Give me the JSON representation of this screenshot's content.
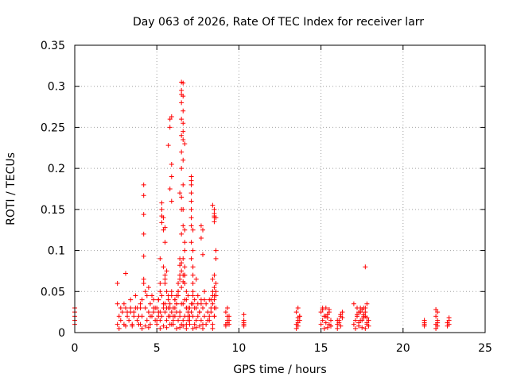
{
  "chart_data": {
    "type": "scatter",
    "title": "Day 063 of 2026, Rate Of TEC Index for receiver larr",
    "xlabel": "GPS time / hours",
    "ylabel": "ROTI / TECUs",
    "xlim": [
      0,
      25
    ],
    "ylim": [
      0,
      0.35
    ],
    "xticks": [
      "0",
      "5",
      "10",
      "15",
      "20",
      "25"
    ],
    "xtick_values": [
      0,
      5,
      10,
      15,
      20,
      25
    ],
    "yticks": [
      "0",
      "0.05",
      "0.1",
      "0.15",
      "0.2",
      "0.25",
      "0.3",
      "0.35"
    ],
    "ytick_values": [
      0,
      0.05,
      0.1,
      0.15,
      0.2,
      0.25,
      0.3,
      0.35
    ],
    "grid": true,
    "marker": "+",
    "color": "#ff0000",
    "series": [
      {
        "x": [
          0.0,
          0.0,
          0.0,
          0.0,
          0.0,
          2.6,
          2.7,
          2.8,
          2.9,
          3.0,
          3.1,
          3.2,
          3.3,
          3.4,
          3.5,
          3.6,
          3.7,
          3.8,
          3.9,
          2.6,
          2.8,
          3.0,
          3.2,
          3.4,
          3.6,
          3.8,
          2.7,
          3.1,
          3.5,
          3.9,
          3.1,
          2.6,
          3.4,
          3.7,
          4.0,
          4.1,
          4.2,
          4.2,
          4.2,
          4.2,
          4.2,
          4.3,
          4.4,
          4.5,
          4.6,
          4.7,
          4.8,
          4.9,
          4.0,
          4.1,
          4.3,
          4.4,
          4.6,
          4.8,
          4.9,
          4.2,
          4.5,
          4.7,
          4.1,
          4.3,
          4.5,
          4.2,
          4.8,
          4.6,
          4.0,
          5.0,
          5.1,
          5.2,
          5.2,
          5.3,
          5.3,
          5.3,
          5.3,
          5.4,
          5.4,
          5.4,
          5.5,
          5.5,
          5.5,
          5.6,
          5.6,
          5.7,
          5.7,
          5.8,
          5.8,
          5.9,
          5.9,
          5.0,
          5.1,
          5.2,
          5.3,
          5.4,
          5.5,
          5.6,
          5.7,
          5.8,
          5.9,
          5.0,
          5.2,
          5.4,
          5.6,
          5.8,
          5.1,
          5.3,
          5.5,
          5.7,
          5.2,
          5.4,
          5.6,
          5.9,
          5.2,
          5.5,
          5.5,
          5.1,
          5.7,
          5.8,
          5.8,
          5.9,
          5.9,
          5.9,
          5.8,
          5.9,
          6.0,
          6.0,
          6.1,
          6.1,
          6.2,
          6.2,
          6.3,
          6.3,
          6.4,
          6.4,
          6.5,
          6.5,
          6.5,
          6.5,
          6.5,
          6.5,
          6.5,
          6.5,
          6.6,
          6.6,
          6.6,
          6.6,
          6.6,
          6.6,
          6.6,
          6.7,
          6.7,
          6.7,
          6.7,
          6.8,
          6.8,
          6.8,
          6.9,
          6.9,
          6.9,
          6.0,
          6.1,
          6.2,
          6.3,
          6.4,
          6.5,
          6.6,
          6.7,
          6.8,
          6.9,
          6.0,
          6.2,
          6.4,
          6.6,
          6.8,
          6.1,
          6.3,
          6.5,
          6.7,
          6.9,
          6.2,
          6.4,
          6.6,
          6.8,
          6.3,
          6.5,
          6.7,
          6.4,
          6.6,
          6.5,
          6.6,
          6.7,
          6.5,
          6.6,
          6.4,
          6.5,
          6.6,
          6.7,
          6.6,
          6.5,
          6.7,
          6.5,
          6.6,
          6.4,
          7.0,
          7.0,
          7.0,
          7.1,
          7.1,
          7.1,
          7.1,
          7.1,
          7.1,
          7.1,
          7.1,
          7.1,
          7.1,
          7.2,
          7.2,
          7.2,
          7.2,
          7.2,
          7.2,
          7.2,
          7.0,
          7.1,
          7.2,
          7.3,
          7.4,
          7.5,
          7.6,
          7.7,
          7.8,
          7.9,
          7.0,
          7.2,
          7.4,
          7.6,
          7.8,
          7.1,
          7.3,
          7.5,
          7.7,
          7.9,
          7.2,
          7.4,
          7.6,
          7.8,
          7.3,
          7.5,
          7.7,
          7.7,
          7.8,
          7.7,
          7.8,
          7.4,
          7.9,
          8.0,
          8.1,
          8.2,
          8.3,
          8.4,
          8.5,
          8.0,
          8.2,
          8.4,
          8.1,
          8.3,
          8.5,
          8.2,
          8.4,
          8.3,
          8.5,
          8.4,
          8.4,
          8.4,
          8.5,
          8.5,
          8.5,
          8.5,
          8.5,
          8.6,
          8.6,
          8.6,
          8.6,
          8.5,
          8.6,
          8.4,
          8.5,
          8.6,
          8.5,
          8.6,
          8.5,
          9.2,
          9.3,
          9.4,
          9.2,
          9.3,
          9.4,
          9.3,
          9.2,
          9.4,
          9.3,
          10.3,
          10.3,
          10.3,
          10.3,
          10.3,
          13.5,
          13.6,
          13.7,
          13.5,
          13.6,
          13.7,
          13.6,
          13.5,
          13.7,
          13.6,
          13.6,
          15.0,
          15.1,
          15.2,
          15.3,
          15.4,
          15.5,
          15.6,
          15.0,
          15.2,
          15.4,
          15.6,
          15.1,
          15.3,
          15.5,
          15.2,
          15.4,
          15.6,
          15.3,
          15.5,
          15.1,
          16.0,
          16.1,
          16.2,
          16.3,
          16.0,
          16.2,
          16.1,
          16.3,
          16.2,
          16.0,
          17.0,
          17.1,
          17.2,
          17.3,
          17.4,
          17.5,
          17.6,
          17.7,
          17.8,
          17.9,
          17.0,
          17.2,
          17.4,
          17.6,
          17.8,
          17.1,
          17.3,
          17.5,
          17.7,
          17.9,
          17.2,
          17.4,
          17.6,
          17.8,
          17.3,
          17.5,
          17.7,
          17.2,
          17.6,
          17.8,
          17.4,
          17.7,
          17.7,
          21.3,
          21.3,
          21.3,
          21.3,
          22.0,
          22.1,
          22.0,
          22.1,
          22.0,
          22.1,
          22.1,
          22.0,
          22.7,
          22.8,
          22.7,
          22.8,
          22.8
        ],
        "y": [
          0.01,
          0.015,
          0.02,
          0.025,
          0.03,
          0.01,
          0.02,
          0.015,
          0.025,
          0.01,
          0.03,
          0.02,
          0.015,
          0.025,
          0.01,
          0.02,
          0.03,
          0.015,
          0.02,
          0.035,
          0.03,
          0.035,
          0.025,
          0.03,
          0.025,
          0.03,
          0.005,
          0.008,
          0.008,
          0.01,
          0.072,
          0.06,
          0.04,
          0.045,
          0.01,
          0.02,
          0.18,
          0.167,
          0.144,
          0.12,
          0.093,
          0.03,
          0.015,
          0.025,
          0.01,
          0.02,
          0.03,
          0.015,
          0.035,
          0.04,
          0.05,
          0.045,
          0.035,
          0.04,
          0.03,
          0.06,
          0.055,
          0.045,
          0.005,
          0.008,
          0.006,
          0.065,
          0.025,
          0.02,
          0.03,
          0.01,
          0.02,
          0.06,
          0.05,
          0.158,
          0.15,
          0.142,
          0.134,
          0.14,
          0.125,
          0.08,
          0.128,
          0.11,
          0.07,
          0.075,
          0.05,
          0.045,
          0.04,
          0.035,
          0.03,
          0.05,
          0.045,
          0.03,
          0.025,
          0.015,
          0.02,
          0.03,
          0.025,
          0.015,
          0.02,
          0.01,
          0.025,
          0.015,
          0.025,
          0.035,
          0.03,
          0.02,
          0.04,
          0.045,
          0.035,
          0.03,
          0.005,
          0.008,
          0.006,
          0.01,
          0.09,
          0.065,
          0.06,
          0.04,
          0.228,
          0.25,
          0.26,
          0.263,
          0.205,
          0.19,
          0.175,
          0.16,
          0.01,
          0.02,
          0.03,
          0.04,
          0.035,
          0.045,
          0.05,
          0.06,
          0.07,
          0.09,
          0.305,
          0.295,
          0.29,
          0.28,
          0.24,
          0.2,
          0.15,
          0.12,
          0.304,
          0.288,
          0.27,
          0.245,
          0.235,
          0.18,
          0.15,
          0.125,
          0.1,
          0.08,
          0.07,
          0.05,
          0.04,
          0.03,
          0.02,
          0.03,
          0.025,
          0.015,
          0.02,
          0.025,
          0.015,
          0.02,
          0.01,
          0.015,
          0.02,
          0.01,
          0.015,
          0.03,
          0.035,
          0.025,
          0.035,
          0.03,
          0.04,
          0.045,
          0.035,
          0.04,
          0.045,
          0.005,
          0.006,
          0.008,
          0.005,
          0.05,
          0.055,
          0.06,
          0.065,
          0.07,
          0.26,
          0.255,
          0.23,
          0.22,
          0.21,
          0.17,
          0.165,
          0.13,
          0.11,
          0.09,
          0.085,
          0.07,
          0.075,
          0.062,
          0.082,
          0.01,
          0.02,
          0.03,
          0.19,
          0.185,
          0.18,
          0.17,
          0.16,
          0.15,
          0.14,
          0.13,
          0.11,
          0.09,
          0.125,
          0.1,
          0.08,
          0.07,
          0.06,
          0.05,
          0.045,
          0.015,
          0.025,
          0.02,
          0.01,
          0.015,
          0.02,
          0.025,
          0.015,
          0.01,
          0.02,
          0.03,
          0.035,
          0.03,
          0.025,
          0.03,
          0.035,
          0.04,
          0.045,
          0.035,
          0.04,
          0.005,
          0.006,
          0.008,
          0.005,
          0.03,
          0.035,
          0.04,
          0.13,
          0.125,
          0.115,
          0.095,
          0.065,
          0.05,
          0.01,
          0.015,
          0.02,
          0.025,
          0.01,
          0.03,
          0.035,
          0.04,
          0.045,
          0.025,
          0.03,
          0.02,
          0.015,
          0.035,
          0.04,
          0.045,
          0.005,
          0.05,
          0.155,
          0.15,
          0.145,
          0.142,
          0.14,
          0.135,
          0.14,
          0.1,
          0.09,
          0.06,
          0.055,
          0.045,
          0.065,
          0.07,
          0.05,
          0.04,
          0.03,
          0.02,
          0.01,
          0.015,
          0.02,
          0.025,
          0.03,
          0.015,
          0.02,
          0.008,
          0.01,
          0.012,
          0.008,
          0.01,
          0.012,
          0.015,
          0.022,
          0.01,
          0.015,
          0.02,
          0.025,
          0.03,
          0.015,
          0.008,
          0.005,
          0.02,
          0.012,
          0.018,
          0.01,
          0.015,
          0.02,
          0.012,
          0.018,
          0.01,
          0.015,
          0.025,
          0.02,
          0.022,
          0.008,
          0.03,
          0.02,
          0.025,
          0.005,
          0.006,
          0.008,
          0.03,
          0.028,
          0.028,
          0.01,
          0.015,
          0.02,
          0.025,
          0.005,
          0.008,
          0.012,
          0.018,
          0.022,
          0.015,
          0.01,
          0.015,
          0.02,
          0.025,
          0.03,
          0.015,
          0.02,
          0.025,
          0.01,
          0.015,
          0.035,
          0.03,
          0.025,
          0.03,
          0.035,
          0.005,
          0.008,
          0.006,
          0.005,
          0.008,
          0.02,
          0.025,
          0.022,
          0.018,
          0.012,
          0.028,
          0.03,
          0.022,
          0.018,
          0.012,
          0.015,
          0.02,
          0.08,
          0.008,
          0.01,
          0.012,
          0.015,
          0.01,
          0.015,
          0.02,
          0.025,
          0.028,
          0.012,
          0.008,
          0.005,
          0.008,
          0.01,
          0.012,
          0.015,
          0.018
        ]
      }
    ]
  }
}
